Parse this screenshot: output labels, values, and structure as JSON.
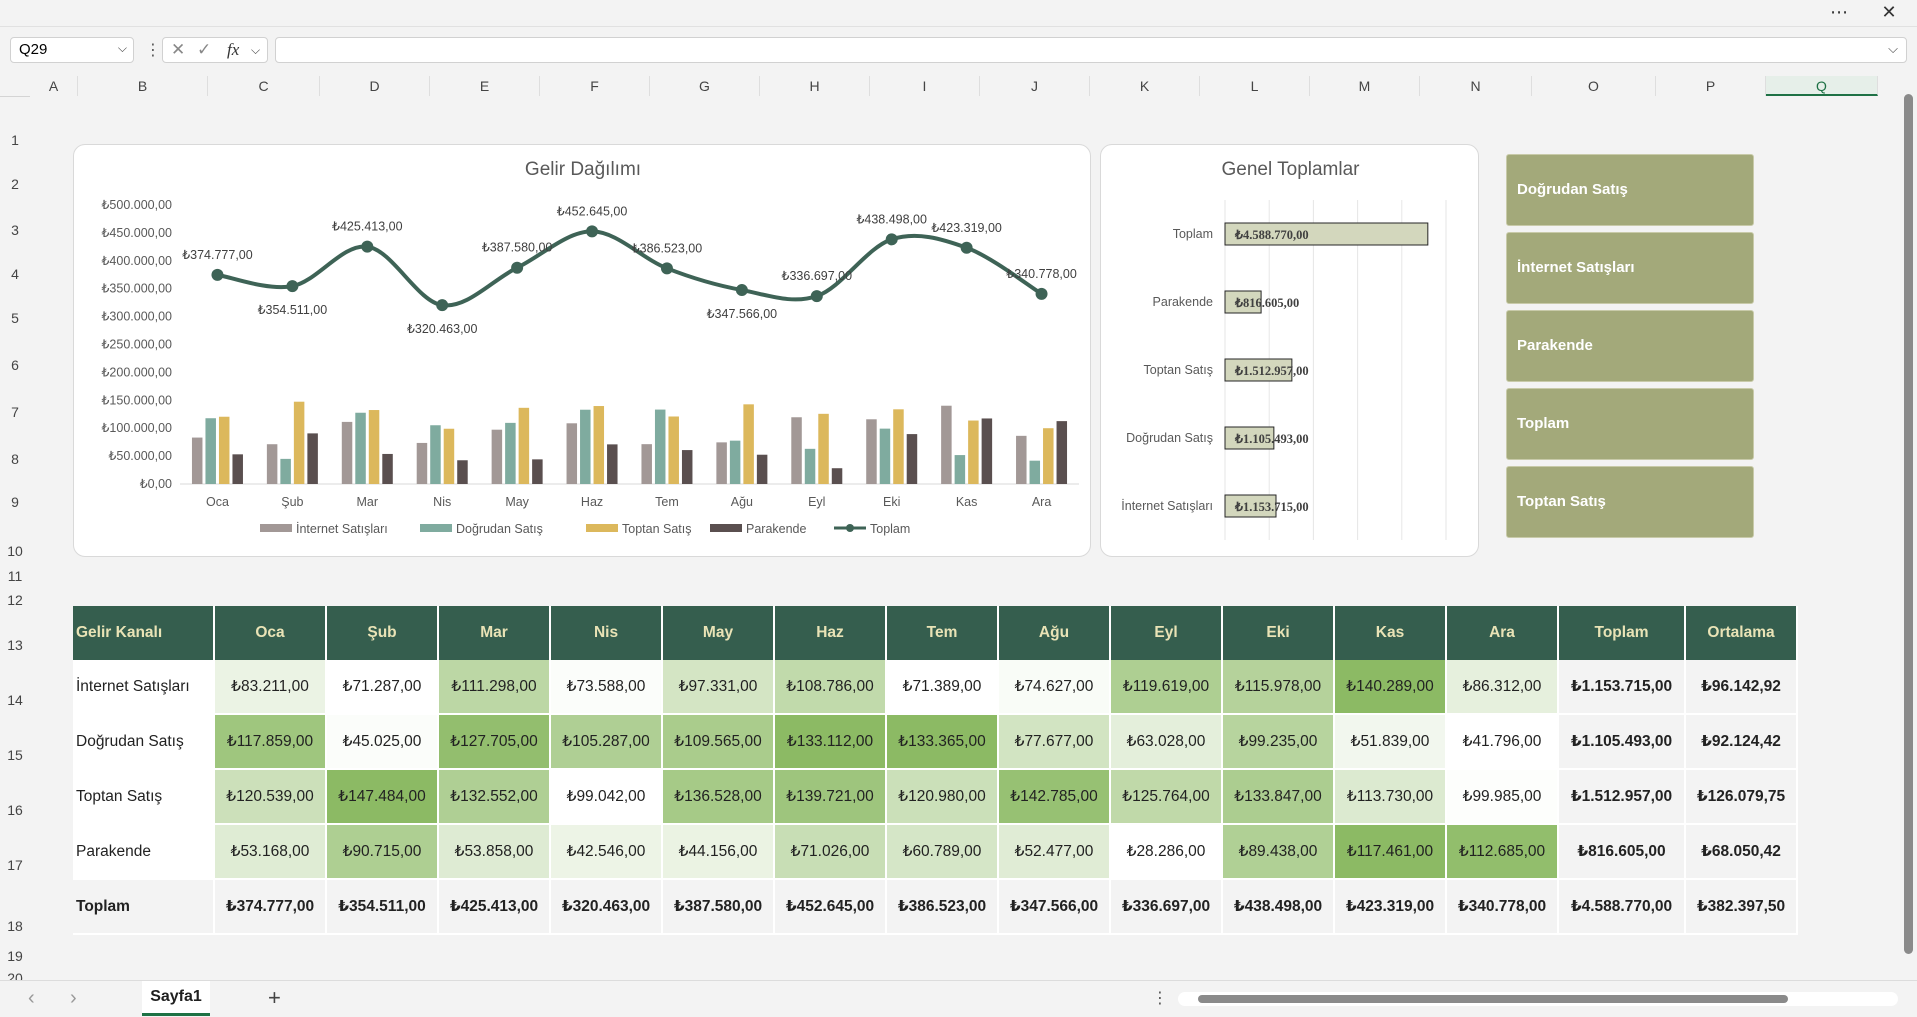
{
  "window": {
    "more_icon": "more-icon",
    "close_icon": "close-icon"
  },
  "formula_bar": {
    "name_box": "Q29",
    "fx_label": "fx",
    "formula": ""
  },
  "columns": [
    "A",
    "B",
    "C",
    "D",
    "E",
    "F",
    "G",
    "H",
    "I",
    "J",
    "K",
    "L",
    "M",
    "N",
    "O",
    "P",
    "Q"
  ],
  "rows": [
    "1",
    "2",
    "3",
    "4",
    "5",
    "6",
    "7",
    "8",
    "9",
    "10",
    "11",
    "12",
    "13",
    "14",
    "15",
    "16",
    "17",
    "18",
    "19",
    "20"
  ],
  "colors": {
    "internet": "#a29896",
    "dogrudan": "#7fab9f",
    "toptan": "#dcb85c",
    "parakende": "#5a4f4f",
    "toplam": "#3e6356",
    "header": "#355e4e",
    "slicer": "#a3a97a"
  },
  "chart_data": [
    {
      "type": "bar",
      "title": "Gelir Dağılımı",
      "categories": [
        "Oca",
        "Şub",
        "Mar",
        "Nis",
        "May",
        "Haz",
        "Tem",
        "Ağu",
        "Eyl",
        "Eki",
        "Kas",
        "Ara"
      ],
      "ylim": [
        0,
        500000
      ],
      "yticks": [
        "₺500.000,00",
        "₺450.000,00",
        "₺400.000,00",
        "₺350.000,00",
        "₺300.000,00",
        "₺250.000,00",
        "₺200.000,00",
        "₺150.000,00",
        "₺100.000,00",
        "₺50.000,00",
        "₺0,00"
      ],
      "series": [
        {
          "name": "İnternet Satışları",
          "values": [
            83211,
            71287,
            111298,
            73588,
            97331,
            108786,
            71389,
            74627,
            119619,
            115978,
            140289,
            86312
          ]
        },
        {
          "name": "Doğrudan Satış",
          "values": [
            117859,
            45025,
            127705,
            105287,
            109565,
            133112,
            133365,
            77677,
            63028,
            99235,
            51839,
            41796
          ]
        },
        {
          "name": "Toptan Satış",
          "values": [
            120539,
            147484,
            132552,
            99042,
            136528,
            139721,
            120980,
            142785,
            125764,
            133847,
            113730,
            99985
          ]
        },
        {
          "name": "Parakende",
          "values": [
            53168,
            90715,
            53858,
            42546,
            44156,
            71026,
            60789,
            52477,
            28286,
            89438,
            117461,
            112685
          ]
        },
        {
          "name": "Toplam",
          "type": "line",
          "values": [
            374777,
            354511,
            425413,
            320463,
            387580,
            452645,
            386523,
            347566,
            336697,
            438498,
            423319,
            340778
          ],
          "labels": [
            "₺374.777,00",
            "₺354.511,00",
            "₺425.413,00",
            "₺320.463,00",
            "₺387.580,00",
            "₺452.645,00",
            "₺386.523,00",
            "₺347.566,00",
            "₺336.697,00",
            "₺438.498,00",
            "₺423.319,00",
            "₺340.778,00"
          ]
        }
      ],
      "legend": [
        "İnternet Satışları",
        "Doğrudan Satış",
        "Toptan Satış",
        "Parakende",
        "Toplam"
      ]
    },
    {
      "type": "bar",
      "orientation": "horizontal",
      "title": "Genel Toplamlar",
      "categories": [
        "Toplam",
        "Parakende",
        "Toptan Satış",
        "Doğrudan Satış",
        "İnternet Satışları"
      ],
      "values": [
        4588770,
        816605,
        1512957,
        1105493,
        1153715
      ],
      "labels": [
        "₺4.588.770,00",
        "₺816.605,00",
        "₺1.512.957,00",
        "₺1.105.493,00",
        "₺1.153.715,00"
      ],
      "xlim": [
        0,
        5000000
      ]
    }
  ],
  "slicer": {
    "items": [
      "Doğrudan Satış",
      "İnternet Satışları",
      "Parakende",
      "Toplam",
      "Toptan Satış"
    ]
  },
  "table": {
    "headers": [
      "Gelir Kanalı",
      "Oca",
      "Şub",
      "Mar",
      "Nis",
      "May",
      "Haz",
      "Tem",
      "Ağu",
      "Eyl",
      "Eki",
      "Kas",
      "Ara",
      "Toplam",
      "Ortalama"
    ],
    "rows": [
      {
        "name": "İnternet Satışları",
        "cells": [
          "₺83.211,00",
          "₺71.287,00",
          "₺111.298,00",
          "₺73.588,00",
          "₺97.331,00",
          "₺108.786,00",
          "₺71.389,00",
          "₺74.627,00",
          "₺119.619,00",
          "₺115.978,00",
          "₺140.289,00",
          "₺86.312,00"
        ],
        "values": [
          83211,
          71287,
          111298,
          73588,
          97331,
          108786,
          71389,
          74627,
          119619,
          115978,
          140289,
          86312
        ],
        "total": "₺1.153.715,00",
        "avg": "₺96.142,92"
      },
      {
        "name": "Doğrudan Satış",
        "cells": [
          "₺117.859,00",
          "₺45.025,00",
          "₺127.705,00",
          "₺105.287,00",
          "₺109.565,00",
          "₺133.112,00",
          "₺133.365,00",
          "₺77.677,00",
          "₺63.028,00",
          "₺99.235,00",
          "₺51.839,00",
          "₺41.796,00"
        ],
        "values": [
          117859,
          45025,
          127705,
          105287,
          109565,
          133112,
          133365,
          77677,
          63028,
          99235,
          51839,
          41796
        ],
        "total": "₺1.105.493,00",
        "avg": "₺92.124,42"
      },
      {
        "name": "Toptan Satış",
        "cells": [
          "₺120.539,00",
          "₺147.484,00",
          "₺132.552,00",
          "₺99.042,00",
          "₺136.528,00",
          "₺139.721,00",
          "₺120.980,00",
          "₺142.785,00",
          "₺125.764,00",
          "₺133.847,00",
          "₺113.730,00",
          "₺99.985,00"
        ],
        "values": [
          120539,
          147484,
          132552,
          99042,
          136528,
          139721,
          120980,
          142785,
          125764,
          133847,
          113730,
          99985
        ],
        "total": "₺1.512.957,00",
        "avg": "₺126.079,75"
      },
      {
        "name": "Parakende",
        "cells": [
          "₺53.168,00",
          "₺90.715,00",
          "₺53.858,00",
          "₺42.546,00",
          "₺44.156,00",
          "₺71.026,00",
          "₺60.789,00",
          "₺52.477,00",
          "₺28.286,00",
          "₺89.438,00",
          "₺117.461,00",
          "₺112.685,00"
        ],
        "values": [
          53168,
          90715,
          53858,
          42546,
          44156,
          71026,
          60789,
          52477,
          28286,
          89438,
          117461,
          112685
        ],
        "total": "₺816.605,00",
        "avg": "₺68.050,42"
      }
    ],
    "total_row": {
      "name": "Toplam",
      "cells": [
        "₺374.777,00",
        "₺354.511,00",
        "₺425.413,00",
        "₺320.463,00",
        "₺387.580,00",
        "₺452.645,00",
        "₺386.523,00",
        "₺347.566,00",
        "₺336.697,00",
        "₺438.498,00",
        "₺423.319,00",
        "₺340.778,00",
        "₺4.588.770,00",
        "₺382.397,50"
      ]
    }
  },
  "bottom": {
    "sheet_tab": "Sayfa1",
    "add_sheet": "+",
    "prev": "‹",
    "next": "›"
  }
}
